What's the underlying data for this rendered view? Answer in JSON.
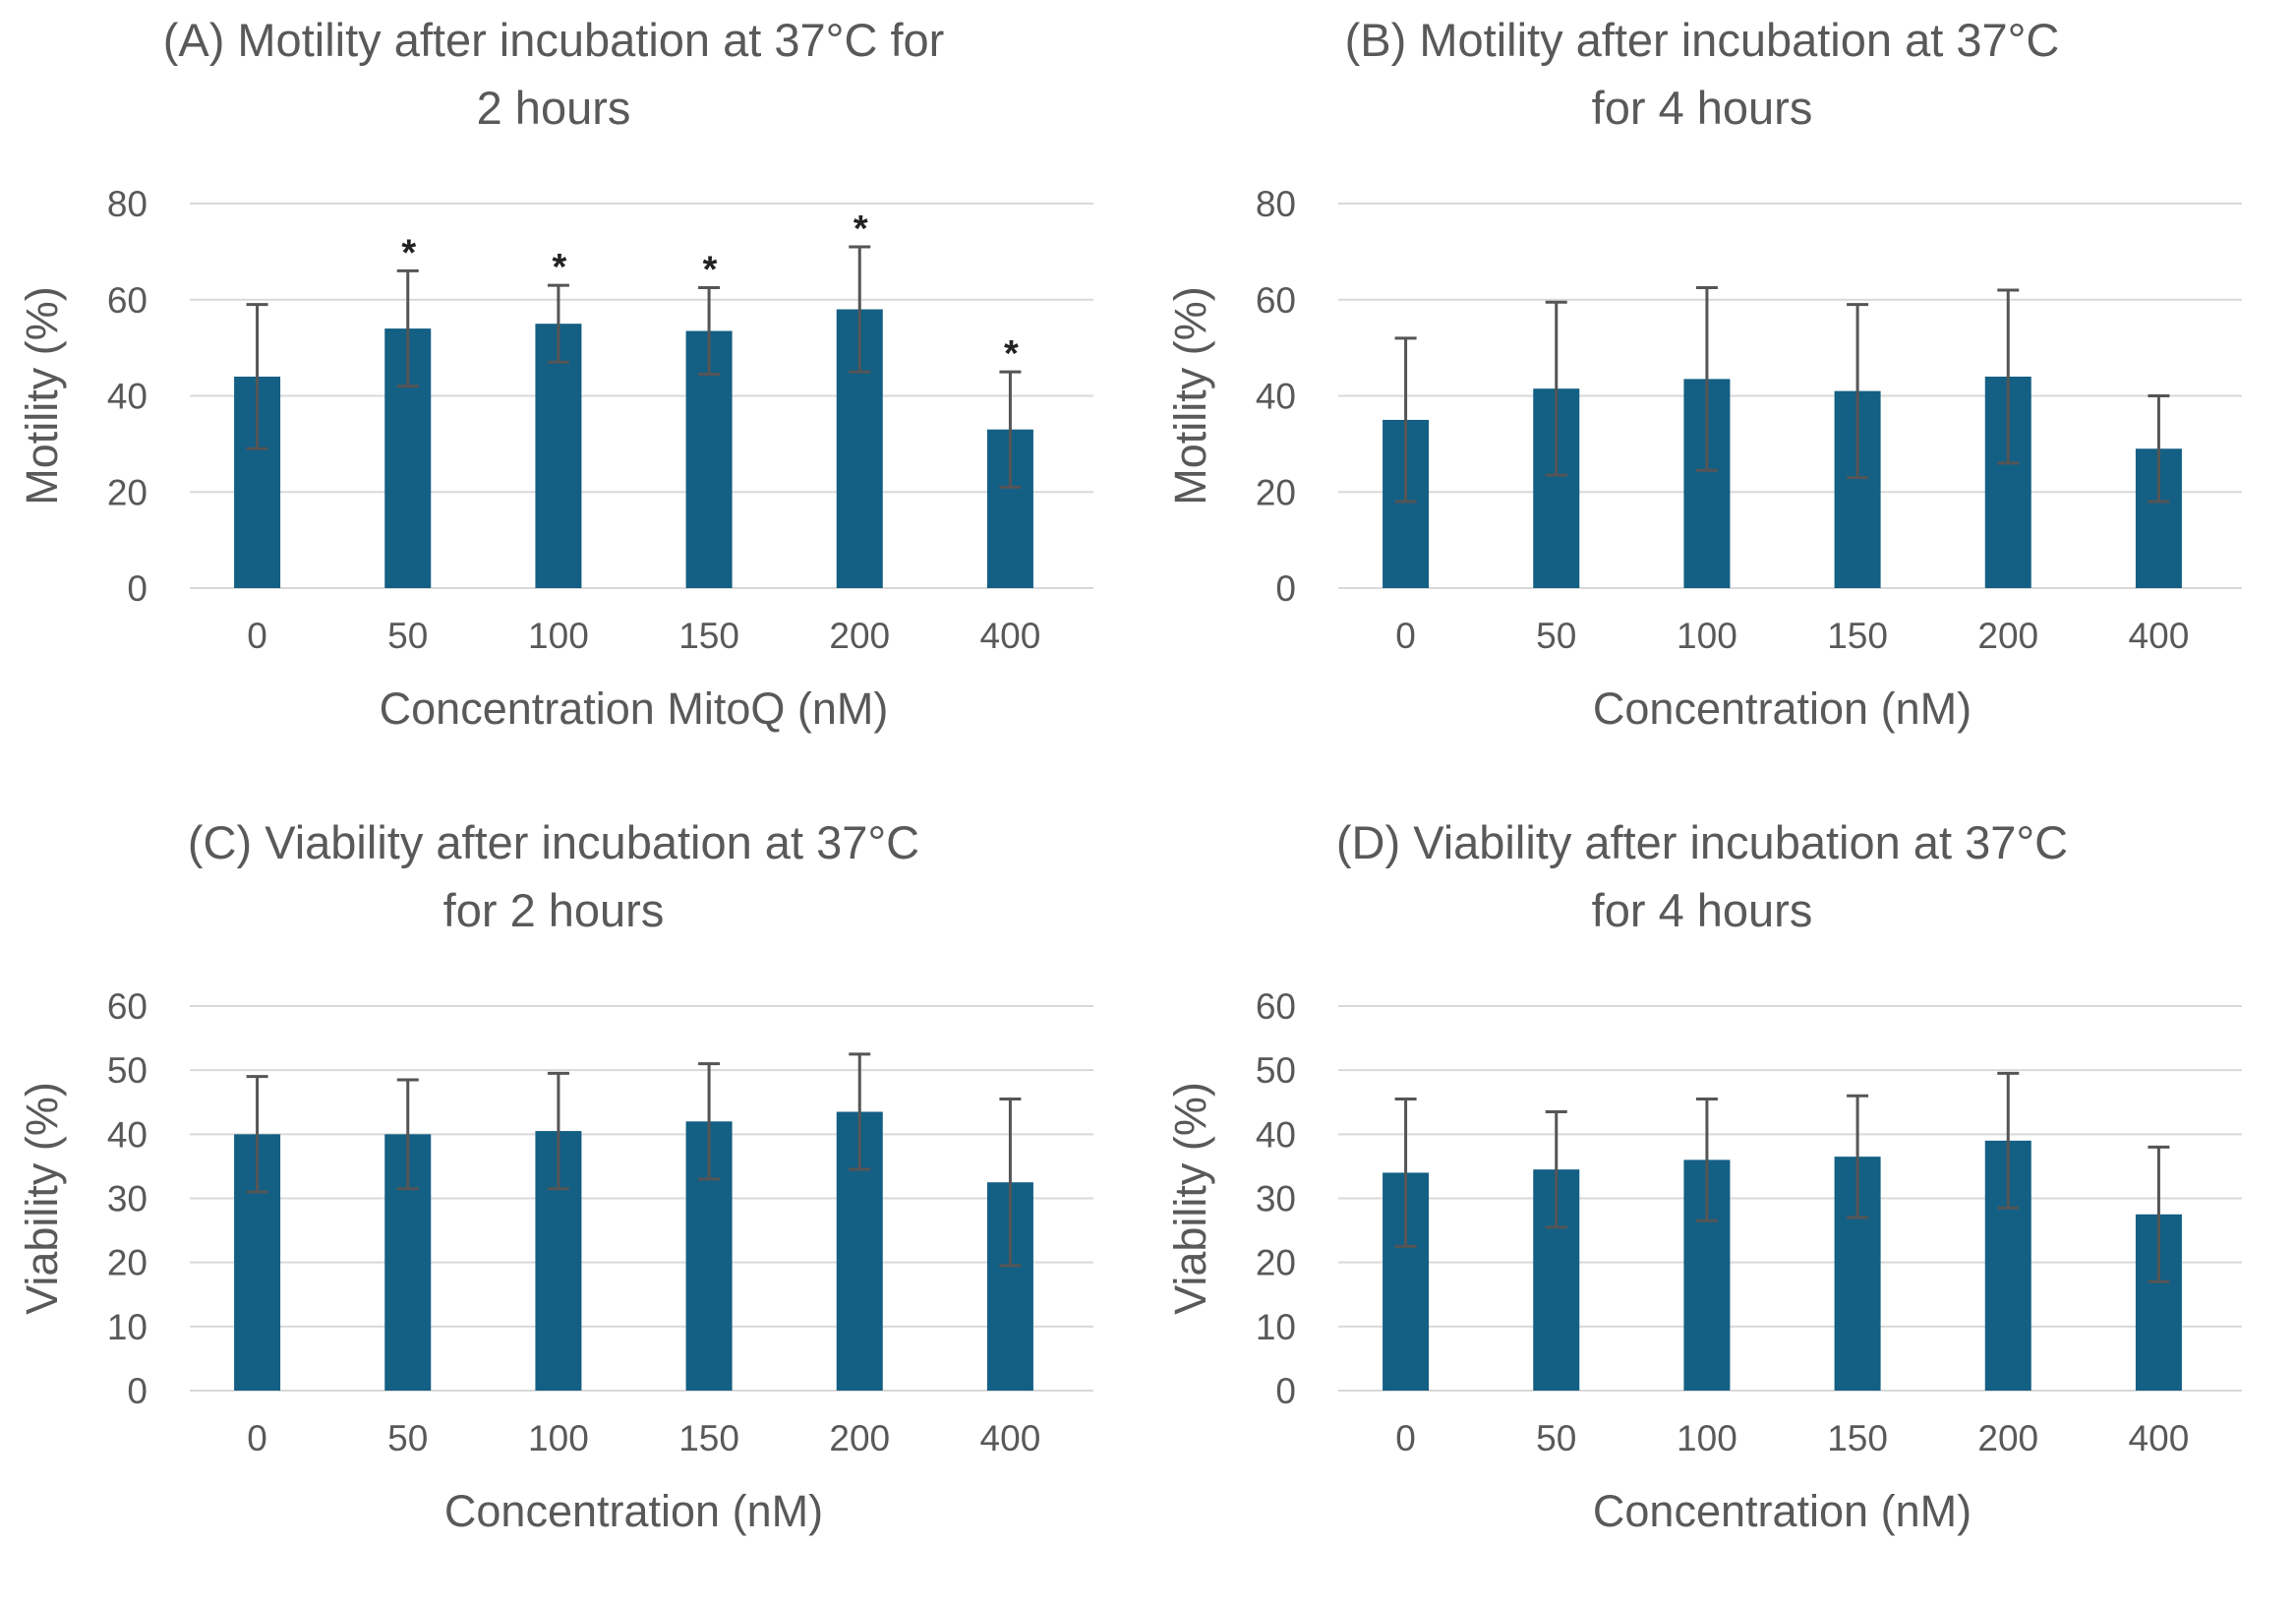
{
  "chart_data": [
    {
      "type": "bar",
      "title": [
        "(A) Motility after incubation at 37°C for",
        "2 hours"
      ],
      "xlabel": "Concentration MitoQ (nM)",
      "ylabel": "Motility (%)",
      "categories": [
        "0",
        "50",
        "100",
        "150",
        "200",
        "400"
      ],
      "values": [
        44,
        54,
        55,
        53.5,
        58,
        33
      ],
      "error": [
        15,
        12,
        8,
        9,
        13,
        12
      ],
      "significance": [
        "",
        "*",
        "*",
        "*",
        "*",
        "*"
      ],
      "ylim": [
        0,
        80
      ],
      "yticks": [
        0,
        20,
        40,
        60,
        80
      ],
      "grid": true,
      "color": "#145f84"
    },
    {
      "type": "bar",
      "title": [
        "(B) Motility after incubation at 37°C",
        "for 4 hours"
      ],
      "xlabel": "Concentration (nM)",
      "ylabel": "Motility (%)",
      "categories": [
        "0",
        "50",
        "100",
        "150",
        "200",
        "400"
      ],
      "values": [
        35,
        41.5,
        43.5,
        41,
        44,
        29
      ],
      "error": [
        17,
        18,
        19,
        18,
        18,
        11
      ],
      "significance": [
        "",
        "",
        "",
        "",
        "",
        ""
      ],
      "ylim": [
        0,
        80
      ],
      "yticks": [
        0,
        20,
        40,
        60,
        80
      ],
      "grid": true,
      "color": "#145f84"
    },
    {
      "type": "bar",
      "title": [
        "(C) Viability after incubation at 37°C",
        "for 2 hours"
      ],
      "xlabel": "Concentration (nM)",
      "ylabel": "Viability (%)",
      "categories": [
        "0",
        "50",
        "100",
        "150",
        "200",
        "400"
      ],
      "values": [
        40,
        40,
        40.5,
        42,
        43.5,
        32.5
      ],
      "error": [
        9,
        8.5,
        9,
        9,
        9,
        13
      ],
      "significance": [
        "",
        "",
        "",
        "",
        "",
        ""
      ],
      "ylim": [
        0,
        60
      ],
      "yticks": [
        0,
        10,
        20,
        30,
        40,
        50,
        60
      ],
      "grid": true,
      "color": "#145f84"
    },
    {
      "type": "bar",
      "title": [
        "(D) Viability after incubation at 37°C",
        "for 4 hours"
      ],
      "xlabel": "Concentration (nM)",
      "ylabel": "Viability (%)",
      "categories": [
        "0",
        "50",
        "100",
        "150",
        "200",
        "400"
      ],
      "values": [
        34,
        34.5,
        36,
        36.5,
        39,
        27.5
      ],
      "error": [
        11.5,
        9,
        9.5,
        9.5,
        10.5,
        10.5
      ],
      "significance": [
        "",
        "",
        "",
        "",
        "",
        ""
      ],
      "ylim": [
        0,
        60
      ],
      "yticks": [
        0,
        10,
        20,
        30,
        40,
        50,
        60
      ],
      "grid": true,
      "color": "#145f84"
    }
  ]
}
